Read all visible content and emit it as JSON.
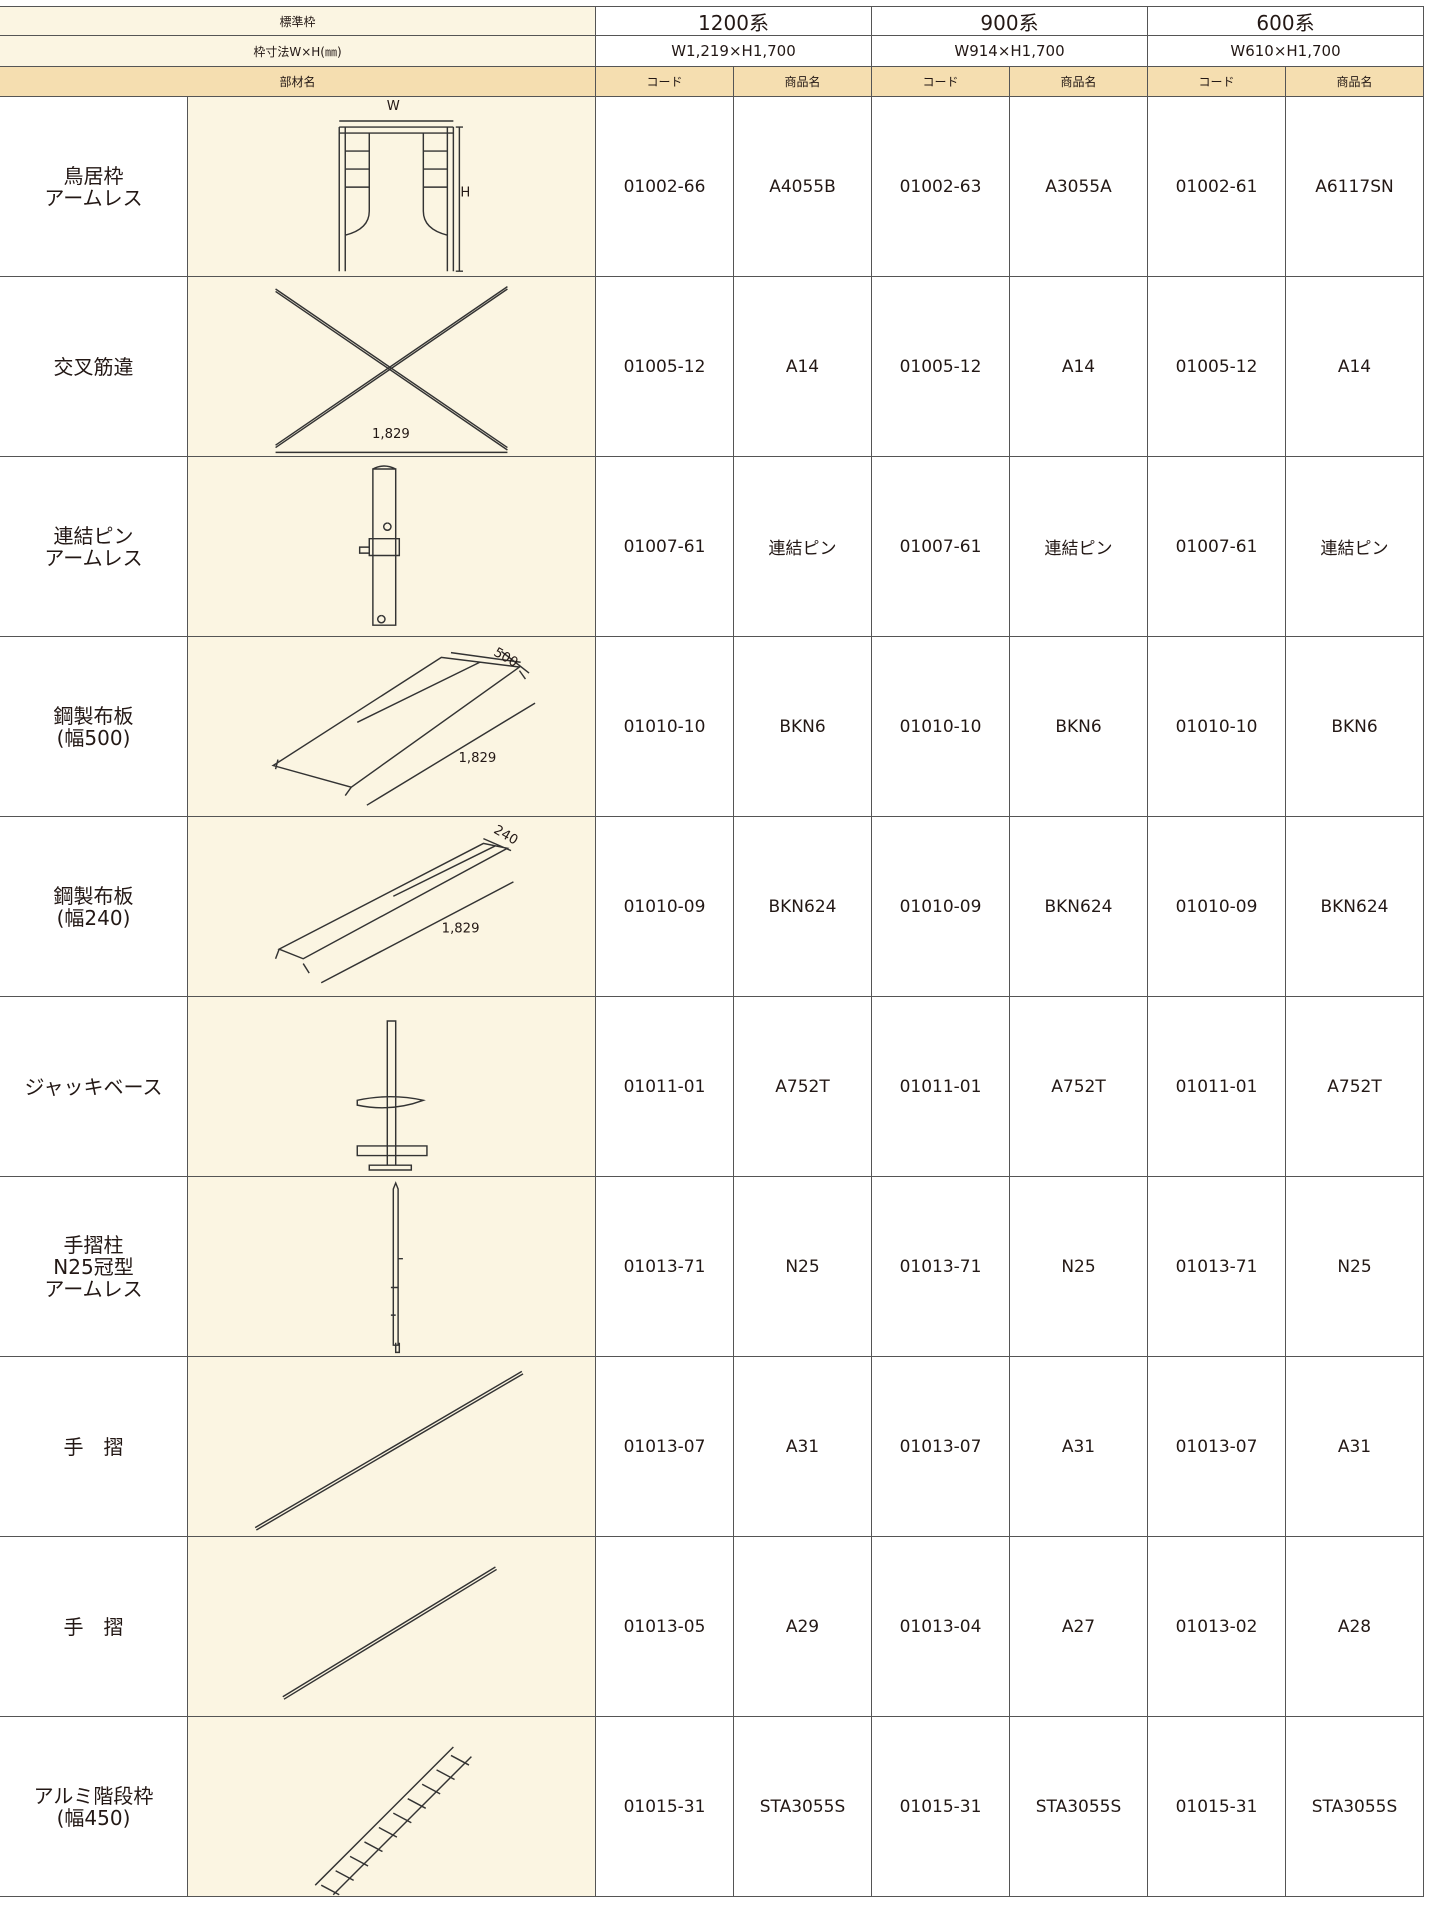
{
  "header": {
    "row1_label": "標準枠",
    "row2_label": "枠寸法W×H(㎜)",
    "row3_label": "部材名",
    "groups": [
      {
        "name": "1200系",
        "size": "W1,219×H1,700",
        "code_label": "コード",
        "product_label": "商品名"
      },
      {
        "name": "900系",
        "size": "W914×H1,700",
        "code_label": "コード",
        "product_label": "商品名"
      },
      {
        "name": "600系",
        "size": "W610×H1,700",
        "code_label": "コード",
        "product_label": "商品名"
      }
    ]
  },
  "rows": [
    {
      "name": "鳥居枠\nアームレス",
      "drawing_labels": [
        "W",
        "H"
      ],
      "cells": [
        "01002-66",
        "A4055B",
        "01002-63",
        "A3055A",
        "01002-61",
        "A6117SN"
      ]
    },
    {
      "name": "交叉筋違",
      "drawing_labels": [
        "1,829"
      ],
      "cells": [
        "01005-12",
        "A14",
        "01005-12",
        "A14",
        "01005-12",
        "A14"
      ]
    },
    {
      "name": "連結ピン\nアームレス",
      "drawing_labels": [],
      "cells": [
        "01007-61",
        "連結ピン",
        "01007-61",
        "連結ピン",
        "01007-61",
        "連結ピン"
      ]
    },
    {
      "name": "鋼製布板\n(幅500)",
      "drawing_labels": [
        "500",
        "1,829"
      ],
      "cells": [
        "01010-10",
        "BKN6",
        "01010-10",
        "BKN6",
        "01010-10",
        "BKN6"
      ]
    },
    {
      "name": "鋼製布板\n(幅240)",
      "drawing_labels": [
        "240",
        "1,829"
      ],
      "cells": [
        "01010-09",
        "BKN624",
        "01010-09",
        "BKN624",
        "01010-09",
        "BKN624"
      ]
    },
    {
      "name": "ジャッキベース",
      "drawing_labels": [],
      "cells": [
        "01011-01",
        "A752T",
        "01011-01",
        "A752T",
        "01011-01",
        "A752T"
      ]
    },
    {
      "name": "手摺柱\nN25冠型\nアームレス",
      "drawing_labels": [],
      "cells": [
        "01013-71",
        "N25",
        "01013-71",
        "N25",
        "01013-71",
        "N25"
      ]
    },
    {
      "name": "手　摺",
      "drawing_labels": [],
      "cells": [
        "01013-07",
        "A31",
        "01013-07",
        "A31",
        "01013-07",
        "A31"
      ]
    },
    {
      "name": "手　摺",
      "drawing_labels": [],
      "cells": [
        "01013-05",
        "A29",
        "01013-04",
        "A27",
        "01013-02",
        "A28"
      ]
    },
    {
      "name": "アルミ階段枠\n(幅450)",
      "drawing_labels": [],
      "cells": [
        "01015-31",
        "STA3055S",
        "01015-31",
        "STA3055S",
        "01015-31",
        "STA3055S"
      ]
    }
  ]
}
